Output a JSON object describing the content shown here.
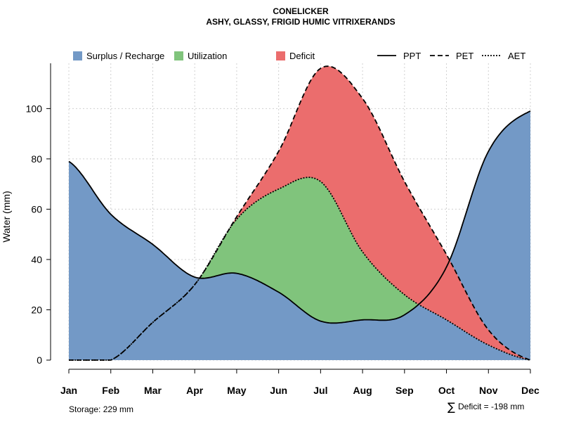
{
  "chart_data": {
    "type": "area",
    "title": "CONELICKER",
    "subtitle": "ASHY, GLASSY, FRIGID HUMIC VITRIXERANDS",
    "ylabel": "Water (mm)",
    "xlabel": "",
    "ylim": [
      0,
      118
    ],
    "yticks": [
      0,
      20,
      40,
      60,
      80,
      100
    ],
    "grid": true,
    "categories": [
      "Jan",
      "Feb",
      "Mar",
      "Apr",
      "May",
      "Jun",
      "Jul",
      "Aug",
      "Sep",
      "Oct",
      "Nov",
      "Dec"
    ],
    "series": [
      {
        "name": "PPT",
        "style": "solid",
        "values": [
          79,
          58,
          46,
          33,
          34.5,
          27,
          15.5,
          16,
          18,
          37,
          83,
          99
        ]
      },
      {
        "name": "PET",
        "style": "dashed",
        "values": [
          0,
          0,
          15,
          30,
          57,
          83,
          116,
          104,
          71,
          42,
          12,
          0
        ]
      },
      {
        "name": "AET",
        "style": "dotted",
        "values": [
          0,
          0,
          15,
          30,
          56,
          68,
          71,
          43,
          26,
          16,
          6,
          0
        ]
      }
    ],
    "fill_legend": [
      {
        "name": "Surplus / Recharge",
        "color": "#7399c6"
      },
      {
        "name": "Utilization",
        "color": "#80c47c"
      },
      {
        "name": "Deficit",
        "color": "#eb6d6d"
      }
    ],
    "line_legend": [
      "PPT",
      "PET",
      "AET"
    ],
    "legend_position": "top",
    "annotations": {
      "storage": "Storage: 229 mm",
      "deficit_symbol": "∑",
      "deficit": "Deficit = -198 mm"
    }
  }
}
